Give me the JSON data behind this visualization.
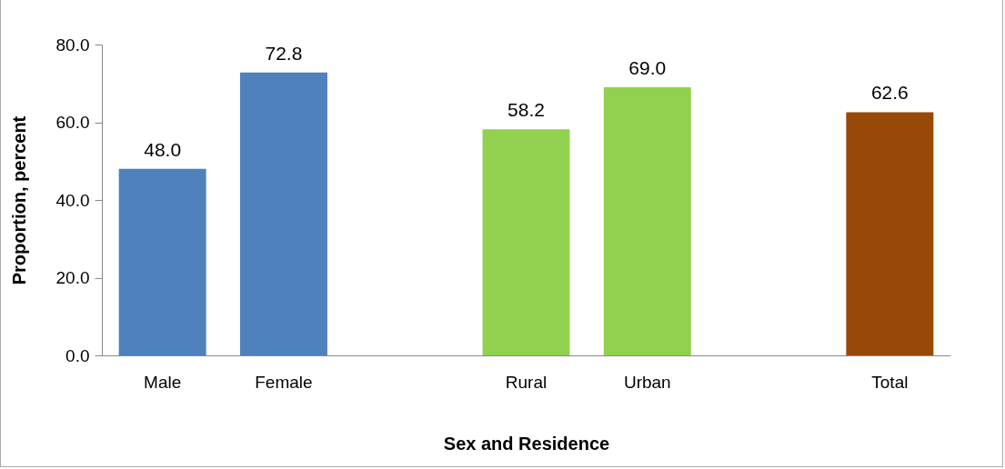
{
  "chart_data": {
    "type": "bar",
    "xlabel": "Sex and Residence",
    "ylabel": "Proportion, percent",
    "categories": [
      "Male",
      "Female",
      null,
      "Rural",
      "Urban",
      null,
      "Total"
    ],
    "values": [
      48.0,
      72.8,
      null,
      58.2,
      69.0,
      null,
      62.6
    ],
    "colors": [
      "#4f81bd",
      "#4f81bd",
      null,
      "#92d050",
      "#92d050",
      null,
      "#984807"
    ],
    "ylim": [
      0,
      80
    ],
    "yticks": [
      {
        "value": 0,
        "label": "0.0"
      },
      {
        "value": 20,
        "label": "20.0"
      },
      {
        "value": 40,
        "label": "40.0"
      },
      {
        "value": 60,
        "label": "60.0"
      },
      {
        "value": 80,
        "label": "80.0"
      }
    ],
    "value_labels": [
      "48.0",
      "72.8",
      null,
      "58.2",
      "69.0",
      null,
      "62.6"
    ],
    "grid": false,
    "legend": false
  }
}
